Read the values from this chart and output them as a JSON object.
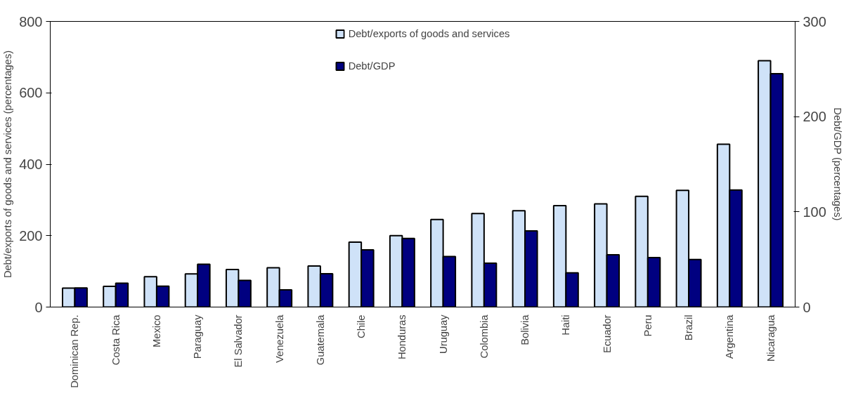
{
  "chart_data": {
    "type": "bar",
    "categories": [
      "Dominican Rep.",
      "Costa Rica",
      "Mexico",
      "Paraguay",
      "El Salvador",
      "Venezuela",
      "Guatemala",
      "Chile",
      "Honduras",
      "Uruguay",
      "Colombia",
      "Bolivia",
      "Haiti",
      "Ecuador",
      "Peru",
      "Brazil",
      "Argentina",
      "Nicaragua"
    ],
    "series": [
      {
        "name": "Debt/exports of goods and services",
        "color": "#cfe2f8",
        "values": [
          53,
          58,
          85,
          93,
          105,
          110,
          115,
          182,
          200,
          245,
          262,
          270,
          284,
          289,
          310,
          327,
          456,
          690
        ]
      },
      {
        "name": "Debt/GDP",
        "color": "#000080",
        "axis": "y2",
        "values": [
          20,
          25,
          22,
          45,
          28,
          18,
          35,
          60,
          72,
          53,
          46,
          80,
          36,
          55,
          52,
          50,
          123,
          245
        ]
      }
    ],
    "ylabel": "Debt/exports of goods and services (percentages)",
    "y2label": "Debt/GDP (percentages)",
    "ylim": [
      0,
      800
    ],
    "yticks": [
      0,
      200,
      400,
      600,
      800
    ],
    "y2lim": [
      0,
      300
    ],
    "y2ticks": [
      0,
      100,
      200,
      300
    ],
    "legend": "top",
    "grid": false
  }
}
